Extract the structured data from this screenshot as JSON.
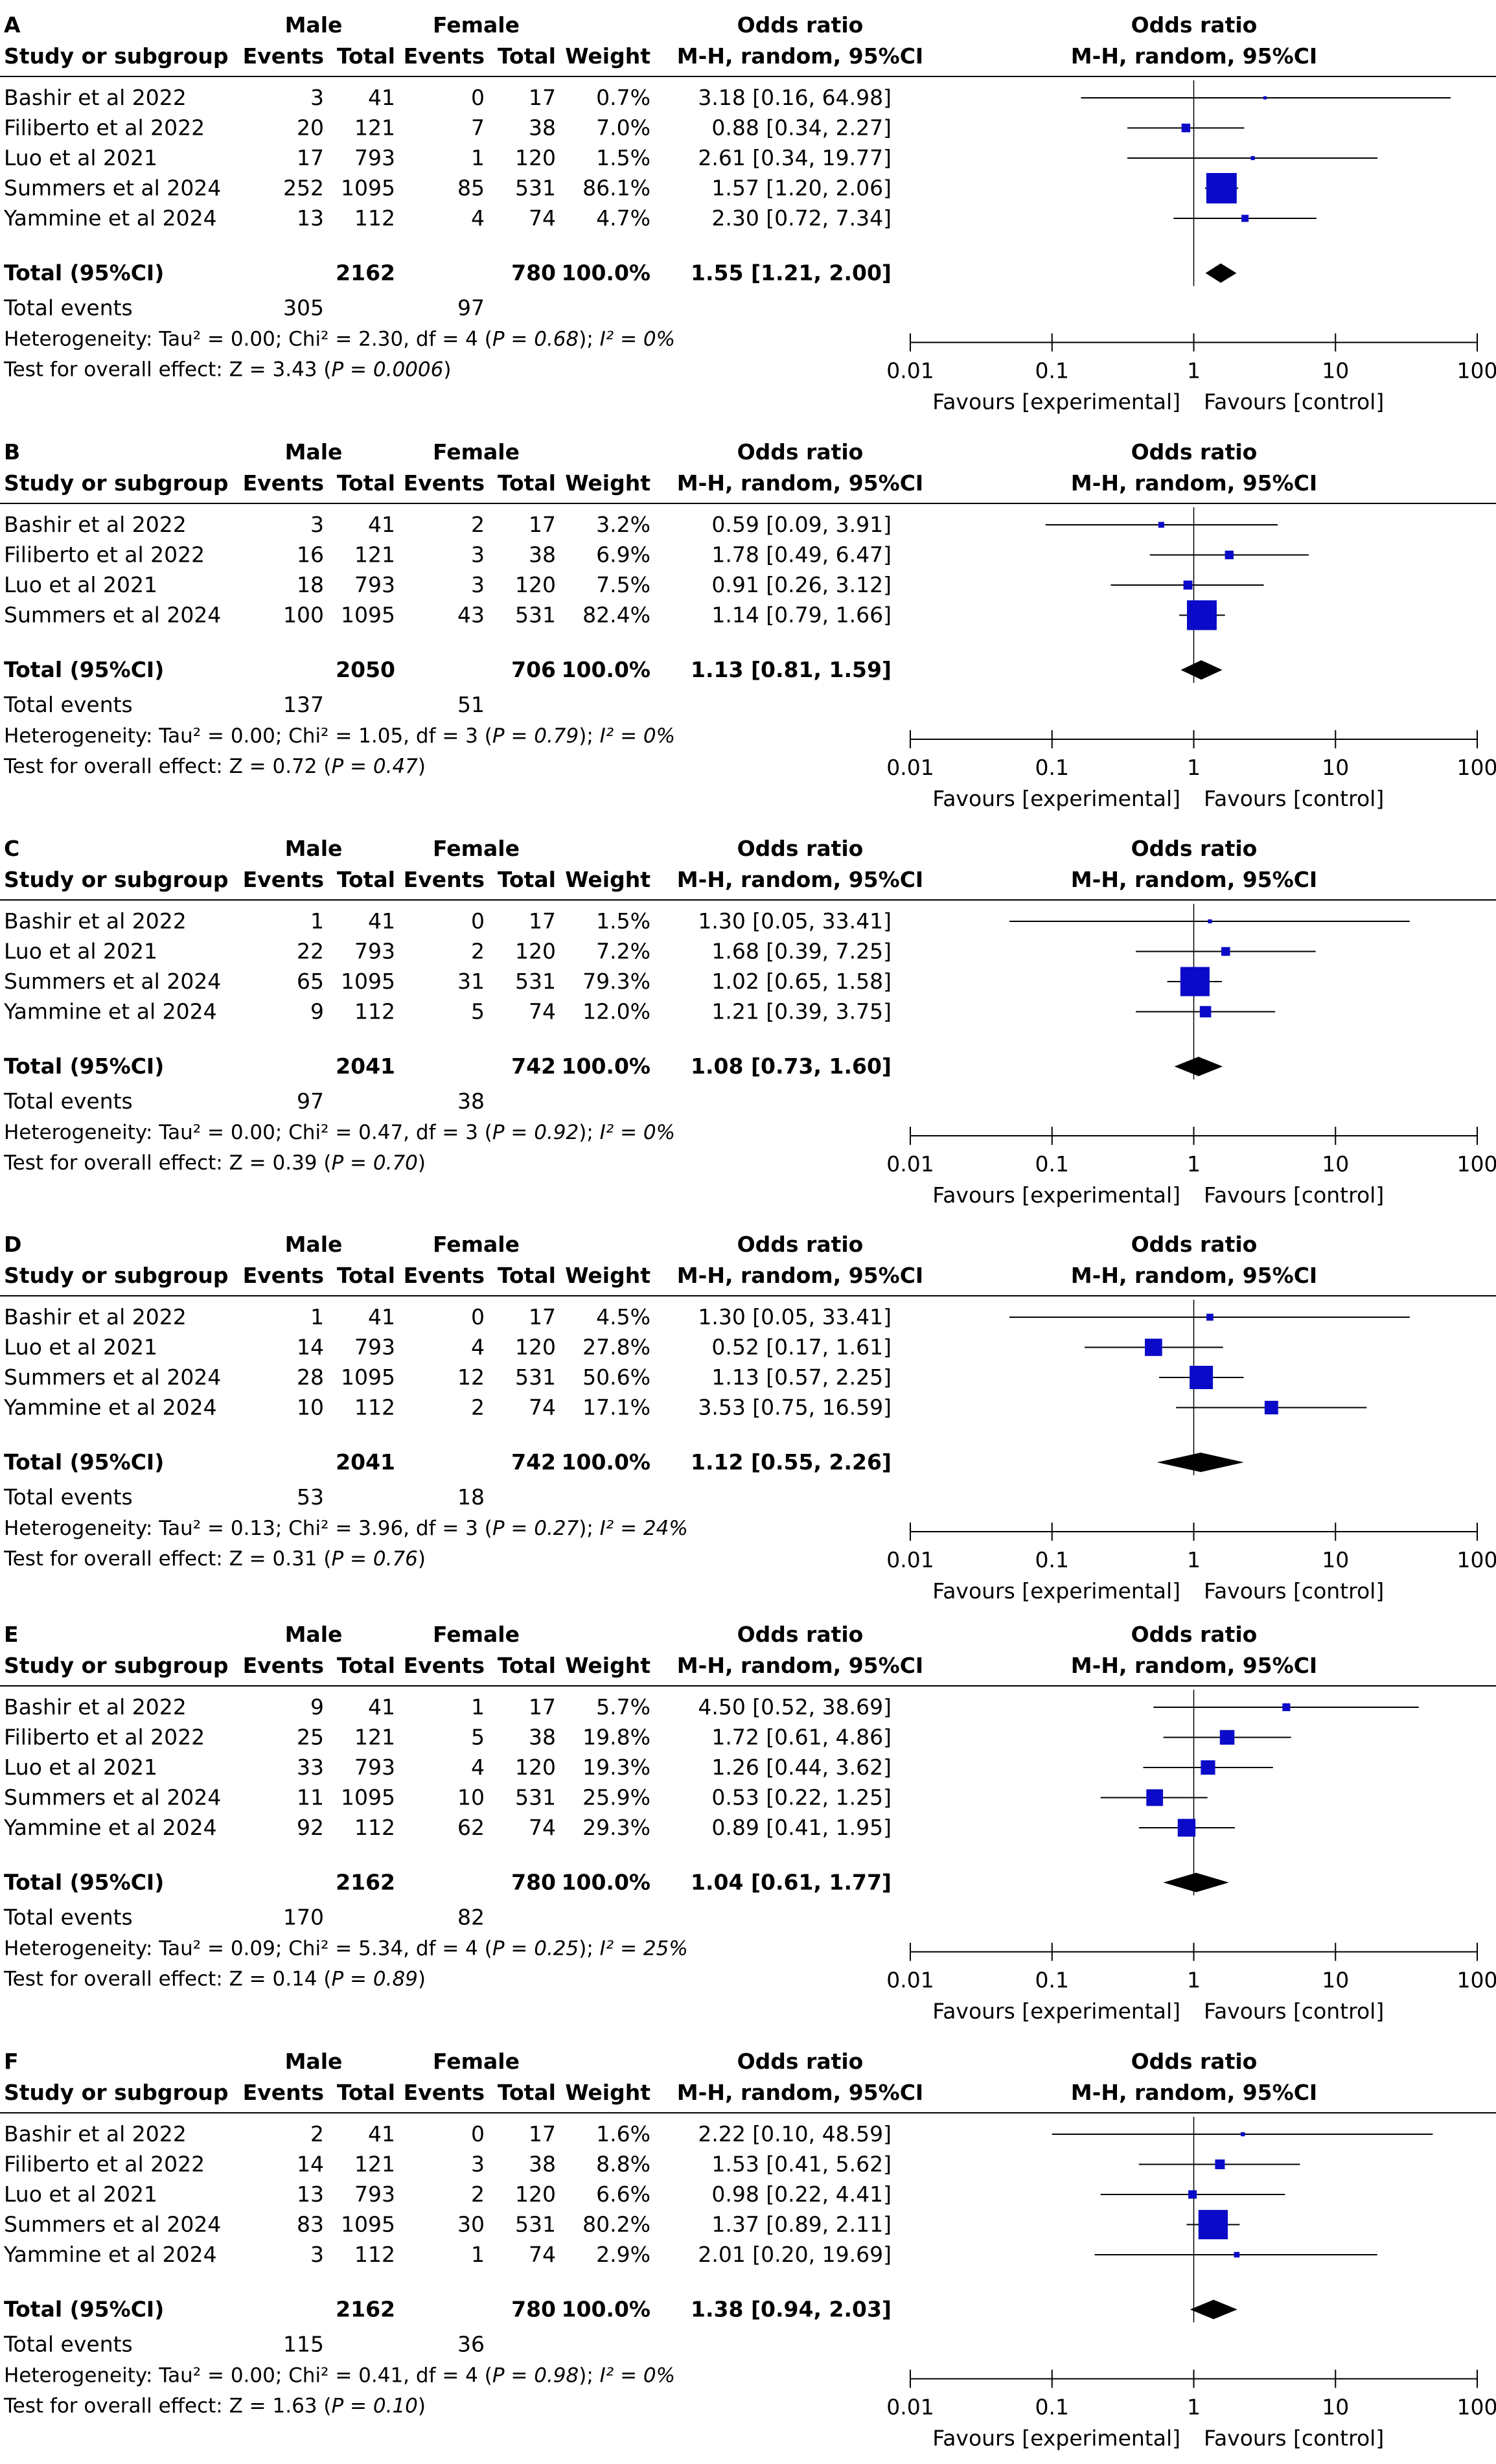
{
  "header": {
    "group1": "Male",
    "group2": "Female",
    "study_col": "Study or subgroup",
    "events1": "Events",
    "total1": "Total",
    "events2": "Events",
    "total2": "Total",
    "weight": "Weight",
    "or_title": "Odds ratio",
    "or_method": "M-H, random, 95%CI",
    "plot_title": "Odds ratio",
    "plot_method": "M-H, random, 95%CI"
  },
  "footer": {
    "total_label": "Total (95%CI)",
    "total_events_label": "Total events",
    "favours_left": "Favours [experimental]",
    "favours_right": "Favours [control]"
  },
  "colors": {
    "marker": "#0a0ac8",
    "line": "#000000"
  },
  "chart_data": [
    {
      "type": "forest",
      "panel_label": "A",
      "xscale": "log",
      "xlim": [
        0.01,
        100
      ],
      "xticks": [
        "0.01",
        "0.1",
        "1",
        "10",
        "100"
      ],
      "studies": [
        {
          "name": "Bashir et al 2022",
          "e1": "3",
          "t1": "41",
          "e2": "0",
          "t2": "17",
          "weight": "0.7%",
          "ci": "3.18 [0.16, 64.98]",
          "or": 3.18,
          "lo": 0.16,
          "hi": 64.98
        },
        {
          "name": "Filiberto et al 2022",
          "e1": "20",
          "t1": "121",
          "e2": "7",
          "t2": "38",
          "weight": "7.0%",
          "ci": "0.88 [0.34, 2.27]",
          "or": 0.88,
          "lo": 0.34,
          "hi": 2.27
        },
        {
          "name": "Luo et al 2021",
          "e1": "17",
          "t1": "793",
          "e2": "1",
          "t2": "120",
          "weight": "1.5%",
          "ci": "2.61 [0.34, 19.77]",
          "or": 2.61,
          "lo": 0.34,
          "hi": 19.77
        },
        {
          "name": "Summers et al 2024",
          "e1": "252",
          "t1": "1095",
          "e2": "85",
          "t2": "531",
          "weight": "86.1%",
          "ci": "1.57 [1.20, 2.06]",
          "or": 1.57,
          "lo": 1.2,
          "hi": 2.06
        },
        {
          "name": "Yammine et al 2024",
          "e1": "13",
          "t1": "112",
          "e2": "4",
          "t2": "74",
          "weight": "4.7%",
          "ci": "2.30 [0.72, 7.34]",
          "or": 2.3,
          "lo": 0.72,
          "hi": 7.34
        }
      ],
      "total": {
        "t1": "2162",
        "t2": "780",
        "weight": "100.0%",
        "ci": "1.55 [1.21, 2.00]",
        "or": 1.55,
        "lo": 1.21,
        "hi": 2.0
      },
      "total_events": {
        "e1": "305",
        "e2": "97"
      },
      "het_prefix": "Heterogeneity: Tau² = 0.00; Chi² = 2.30, df = 4 (",
      "het_p": "P = 0.68",
      "het_suffix": "); ",
      "het_i2": "I² = 0%",
      "overall_prefix": "Test for overall effect: Z = 3.43 (",
      "overall_p": "P = 0.0006",
      "overall_suffix": ")"
    },
    {
      "type": "forest",
      "panel_label": "B",
      "xscale": "log",
      "xlim": [
        0.01,
        100
      ],
      "xticks": [
        "0.01",
        "0.1",
        "1",
        "10",
        "100"
      ],
      "studies": [
        {
          "name": "Bashir et al 2022",
          "e1": "3",
          "t1": "41",
          "e2": "2",
          "t2": "17",
          "weight": "3.2%",
          "ci": "0.59 [0.09, 3.91]",
          "or": 0.59,
          "lo": 0.09,
          "hi": 3.91
        },
        {
          "name": "Filiberto et al 2022",
          "e1": "16",
          "t1": "121",
          "e2": "3",
          "t2": "38",
          "weight": "6.9%",
          "ci": "1.78 [0.49, 6.47]",
          "or": 1.78,
          "lo": 0.49,
          "hi": 6.47
        },
        {
          "name": "Luo et al 2021",
          "e1": "18",
          "t1": "793",
          "e2": "3",
          "t2": "120",
          "weight": "7.5%",
          "ci": "0.91 [0.26, 3.12]",
          "or": 0.91,
          "lo": 0.26,
          "hi": 3.12
        },
        {
          "name": "Summers et al 2024",
          "e1": "100",
          "t1": "1095",
          "e2": "43",
          "t2": "531",
          "weight": "82.4%",
          "ci": "1.14 [0.79, 1.66]",
          "or": 1.14,
          "lo": 0.79,
          "hi": 1.66
        }
      ],
      "total": {
        "t1": "2050",
        "t2": "706",
        "weight": "100.0%",
        "ci": "1.13 [0.81, 1.59]",
        "or": 1.13,
        "lo": 0.81,
        "hi": 1.59
      },
      "total_events": {
        "e1": "137",
        "e2": "51"
      },
      "het_prefix": "Heterogeneity: Tau² = 0.00; Chi² = 1.05, df = 3 (",
      "het_p": "P = 0.79",
      "het_suffix": "); ",
      "het_i2": "I² = 0%",
      "overall_prefix": "Test for overall effect: Z = 0.72 (",
      "overall_p": "P = 0.47",
      "overall_suffix": ")"
    },
    {
      "type": "forest",
      "panel_label": "C",
      "xscale": "log",
      "xlim": [
        0.01,
        100
      ],
      "xticks": [
        "0.01",
        "0.1",
        "1",
        "10",
        "100"
      ],
      "studies": [
        {
          "name": "Bashir et al 2022",
          "e1": "1",
          "t1": "41",
          "e2": "0",
          "t2": "17",
          "weight": "1.5%",
          "ci": "1.30 [0.05, 33.41]",
          "or": 1.3,
          "lo": 0.05,
          "hi": 33.41
        },
        {
          "name": "Luo et al 2021",
          "e1": "22",
          "t1": "793",
          "e2": "2",
          "t2": "120",
          "weight": "7.2%",
          "ci": "1.68 [0.39, 7.25]",
          "or": 1.68,
          "lo": 0.39,
          "hi": 7.25
        },
        {
          "name": "Summers et al 2024",
          "e1": "65",
          "t1": "1095",
          "e2": "31",
          "t2": "531",
          "weight": "79.3%",
          "ci": "1.02 [0.65, 1.58]",
          "or": 1.02,
          "lo": 0.65,
          "hi": 1.58
        },
        {
          "name": "Yammine et al 2024",
          "e1": "9",
          "t1": "112",
          "e2": "5",
          "t2": "74",
          "weight": "12.0%",
          "ci": "1.21 [0.39, 3.75]",
          "or": 1.21,
          "lo": 0.39,
          "hi": 3.75
        }
      ],
      "total": {
        "t1": "2041",
        "t2": "742",
        "weight": "100.0%",
        "ci": "1.08 [0.73, 1.60]",
        "or": 1.08,
        "lo": 0.73,
        "hi": 1.6
      },
      "total_events": {
        "e1": "97",
        "e2": "38"
      },
      "het_prefix": "Heterogeneity: Tau² = 0.00; Chi² = 0.47, df = 3 (",
      "het_p": "P = 0.92",
      "het_suffix": "); ",
      "het_i2": "I² = 0%",
      "overall_prefix": "Test for overall effect: Z = 0.39 (",
      "overall_p": "P = 0.70",
      "overall_suffix": ")"
    },
    {
      "type": "forest",
      "panel_label": "D",
      "xscale": "log",
      "xlim": [
        0.01,
        100
      ],
      "xticks": [
        "0.01",
        "0.1",
        "1",
        "10",
        "100"
      ],
      "studies": [
        {
          "name": "Bashir et al 2022",
          "e1": "1",
          "t1": "41",
          "e2": "0",
          "t2": "17",
          "weight": "4.5%",
          "ci": "1.30 [0.05, 33.41]",
          "or": 1.3,
          "lo": 0.05,
          "hi": 33.41
        },
        {
          "name": "Luo et al 2021",
          "e1": "14",
          "t1": "793",
          "e2": "4",
          "t2": "120",
          "weight": "27.8%",
          "ci": "0.52 [0.17, 1.61]",
          "or": 0.52,
          "lo": 0.17,
          "hi": 1.61
        },
        {
          "name": "Summers et al 2024",
          "e1": "28",
          "t1": "1095",
          "e2": "12",
          "t2": "531",
          "weight": "50.6%",
          "ci": "1.13 [0.57, 2.25]",
          "or": 1.13,
          "lo": 0.57,
          "hi": 2.25
        },
        {
          "name": "Yammine et al 2024",
          "e1": "10",
          "t1": "112",
          "e2": "2",
          "t2": "74",
          "weight": "17.1%",
          "ci": "3.53 [0.75, 16.59]",
          "or": 3.53,
          "lo": 0.75,
          "hi": 16.59
        }
      ],
      "total": {
        "t1": "2041",
        "t2": "742",
        "weight": "100.0%",
        "ci": "1.12 [0.55, 2.26]",
        "or": 1.12,
        "lo": 0.55,
        "hi": 2.26
      },
      "total_events": {
        "e1": "53",
        "e2": "18"
      },
      "het_prefix": "Heterogeneity: Tau² = 0.13; Chi² = 3.96, df = 3 (",
      "het_p": "P = 0.27",
      "het_suffix": "); ",
      "het_i2": "I² = 24%",
      "overall_prefix": "Test for overall effect: Z = 0.31 (",
      "overall_p": "P = 0.76",
      "overall_suffix": ")"
    },
    {
      "type": "forest",
      "panel_label": "E",
      "xscale": "log",
      "xlim": [
        0.01,
        100
      ],
      "xticks": [
        "0.01",
        "0.1",
        "1",
        "10",
        "100"
      ],
      "studies": [
        {
          "name": "Bashir et al 2022",
          "e1": "9",
          "t1": "41",
          "e2": "1",
          "t2": "17",
          "weight": "5.7%",
          "ci": "4.50 [0.52, 38.69]",
          "or": 4.5,
          "lo": 0.52,
          "hi": 38.69
        },
        {
          "name": "Filiberto et al 2022",
          "e1": "25",
          "t1": "121",
          "e2": "5",
          "t2": "38",
          "weight": "19.8%",
          "ci": "1.72 [0.61, 4.86]",
          "or": 1.72,
          "lo": 0.61,
          "hi": 4.86
        },
        {
          "name": "Luo et al 2021",
          "e1": "33",
          "t1": "793",
          "e2": "4",
          "t2": "120",
          "weight": "19.3%",
          "ci": "1.26 [0.44, 3.62]",
          "or": 1.26,
          "lo": 0.44,
          "hi": 3.62
        },
        {
          "name": "Summers et al 2024",
          "e1": "11",
          "t1": "1095",
          "e2": "10",
          "t2": "531",
          "weight": "25.9%",
          "ci": "0.53 [0.22, 1.25]",
          "or": 0.53,
          "lo": 0.22,
          "hi": 1.25
        },
        {
          "name": "Yammine et al 2024",
          "e1": "92",
          "t1": "112",
          "e2": "62",
          "t2": "74",
          "weight": "29.3%",
          "ci": "0.89 [0.41, 1.95]",
          "or": 0.89,
          "lo": 0.41,
          "hi": 1.95
        }
      ],
      "total": {
        "t1": "2162",
        "t2": "780",
        "weight": "100.0%",
        "ci": "1.04 [0.61, 1.77]",
        "or": 1.04,
        "lo": 0.61,
        "hi": 1.77
      },
      "total_events": {
        "e1": "170",
        "e2": "82"
      },
      "het_prefix": "Heterogeneity: Tau² = 0.09; Chi² = 5.34, df = 4 (",
      "het_p": "P = 0.25",
      "het_suffix": "); ",
      "het_i2": "I² = 25%",
      "overall_prefix": "Test for overall effect: Z = 0.14 (",
      "overall_p": "P = 0.89",
      "overall_suffix": ")"
    },
    {
      "type": "forest",
      "panel_label": "F",
      "xscale": "log",
      "xlim": [
        0.01,
        100
      ],
      "xticks": [
        "0.01",
        "0.1",
        "1",
        "10",
        "100"
      ],
      "studies": [
        {
          "name": "Bashir et al 2022",
          "e1": "2",
          "t1": "41",
          "e2": "0",
          "t2": "17",
          "weight": "1.6%",
          "ci": "2.22 [0.10, 48.59]",
          "or": 2.22,
          "lo": 0.1,
          "hi": 48.59
        },
        {
          "name": "Filiberto et al 2022",
          "e1": "14",
          "t1": "121",
          "e2": "3",
          "t2": "38",
          "weight": "8.8%",
          "ci": "1.53 [0.41, 5.62]",
          "or": 1.53,
          "lo": 0.41,
          "hi": 5.62
        },
        {
          "name": "Luo et al 2021",
          "e1": "13",
          "t1": "793",
          "e2": "2",
          "t2": "120",
          "weight": "6.6%",
          "ci": "0.98 [0.22, 4.41]",
          "or": 0.98,
          "lo": 0.22,
          "hi": 4.41
        },
        {
          "name": "Summers et al 2024",
          "e1": "83",
          "t1": "1095",
          "e2": "30",
          "t2": "531",
          "weight": "80.2%",
          "ci": "1.37 [0.89, 2.11]",
          "or": 1.37,
          "lo": 0.89,
          "hi": 2.11
        },
        {
          "name": "Yammine et al 2024",
          "e1": "3",
          "t1": "112",
          "e2": "1",
          "t2": "74",
          "weight": "2.9%",
          "ci": "2.01 [0.20, 19.69]",
          "or": 2.01,
          "lo": 0.2,
          "hi": 19.69
        }
      ],
      "total": {
        "t1": "2162",
        "t2": "780",
        "weight": "100.0%",
        "ci": "1.38 [0.94, 2.03]",
        "or": 1.38,
        "lo": 0.94,
        "hi": 2.03
      },
      "total_events": {
        "e1": "115",
        "e2": "36"
      },
      "het_prefix": "Heterogeneity: Tau² = 0.00; Chi² = 0.41, df = 4 (",
      "het_p": "P = 0.98",
      "het_suffix": "); ",
      "het_i2": "I² = 0%",
      "overall_prefix": "Test for overall effect: Z = 1.63 (",
      "overall_p": "P = 0.10",
      "overall_suffix": ")"
    }
  ]
}
